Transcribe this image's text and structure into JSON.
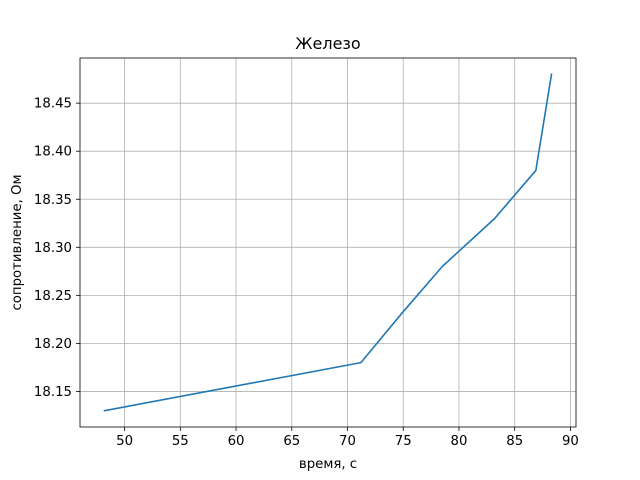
{
  "chart_data": {
    "type": "line",
    "title": "Железо",
    "xlabel": "время, с",
    "ylabel": "сопротивление, Ом",
    "xlim": [
      46.0,
      90.5
    ],
    "ylim": [
      18.113,
      18.497
    ],
    "xticks": [
      50,
      55,
      60,
      65,
      70,
      75,
      80,
      85,
      90
    ],
    "yticks": [
      18.15,
      18.2,
      18.25,
      18.3,
      18.35,
      18.4,
      18.45
    ],
    "xtick_labels": [
      "50",
      "55",
      "60",
      "65",
      "70",
      "75",
      "80",
      "85",
      "90"
    ],
    "ytick_labels": [
      "18.15",
      "18.20",
      "18.25",
      "18.30",
      "18.35",
      "18.40",
      "18.45"
    ],
    "grid": true,
    "series": [
      {
        "color": "#1f77b4",
        "x": [
          48.2,
          71.2,
          75.0,
          78.5,
          83.2,
          86.9,
          88.3
        ],
        "y": [
          18.13,
          18.18,
          18.233,
          18.28,
          18.33,
          18.38,
          18.48
        ]
      }
    ]
  }
}
